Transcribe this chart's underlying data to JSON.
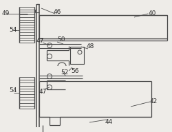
{
  "bg_color": "#eeece8",
  "line_color": "#4a4a4a",
  "label_color": "#2a2a2a",
  "fig_width": 2.5,
  "fig_height": 1.92,
  "dpi": 100
}
